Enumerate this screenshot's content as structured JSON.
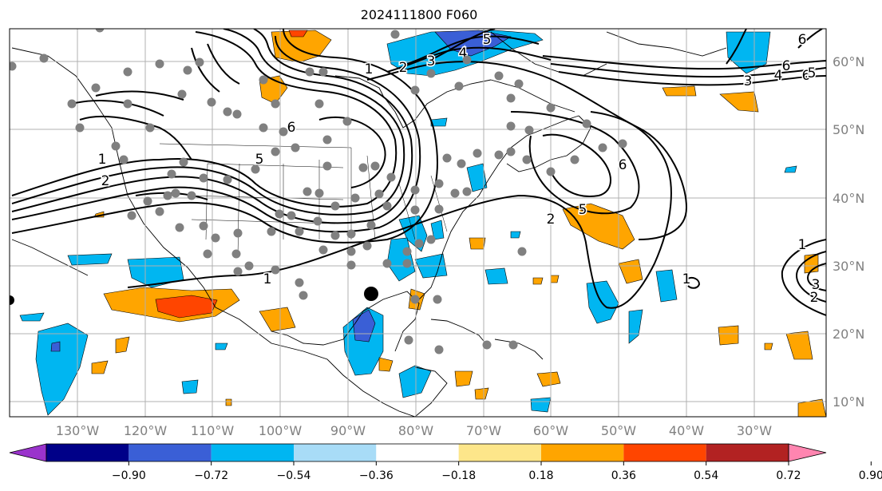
{
  "title": "2024111800 F060",
  "lon_labels": [
    "130°W",
    "120°W",
    "110°W",
    "100°W",
    "90°W",
    "80°W",
    "70°W",
    "60°W",
    "50°W",
    "40°W",
    "30°W"
  ],
  "lat_labels": [
    "60°N",
    "50°N",
    "40°N",
    "30°N",
    "20°N",
    "10°N"
  ],
  "colorbar": {
    "ticks": [
      "−0.90",
      "−0.72",
      "−0.54",
      "−0.36",
      "−0.18",
      "0.18",
      "0.36",
      "0.54",
      "0.72",
      "0.90"
    ],
    "colors": [
      "#9a33cc",
      "#000088",
      "#3a5fd6",
      "#00b6f1",
      "#a8dcf7",
      "#ffffff",
      "#fde68a",
      "#ffa500",
      "#ff4500",
      "#b22222",
      "#ff85b0"
    ]
  },
  "contour_labels": [
    {
      "text": "1"
    },
    {
      "text": "2"
    },
    {
      "text": "3"
    },
    {
      "text": "4"
    },
    {
      "text": "5"
    },
    {
      "text": "6"
    },
    {
      "text": "6"
    },
    {
      "text": "4"
    },
    {
      "text": "6"
    },
    {
      "text": "5"
    },
    {
      "text": "3"
    },
    {
      "text": "2"
    },
    {
      "text": "1"
    },
    {
      "text": "6"
    },
    {
      "text": "5"
    },
    {
      "text": "1"
    },
    {
      "text": "2"
    },
    {
      "text": "3"
    },
    {
      "text": "1"
    },
    {
      "text": "6"
    },
    {
      "text": "5"
    },
    {
      "text": "2"
    },
    {
      "text": "1"
    }
  ],
  "colors": {
    "land": "#000000",
    "grid": "#b0b0b0",
    "contour": "#000000",
    "station": "#808080",
    "axis_label": "#808080"
  }
}
